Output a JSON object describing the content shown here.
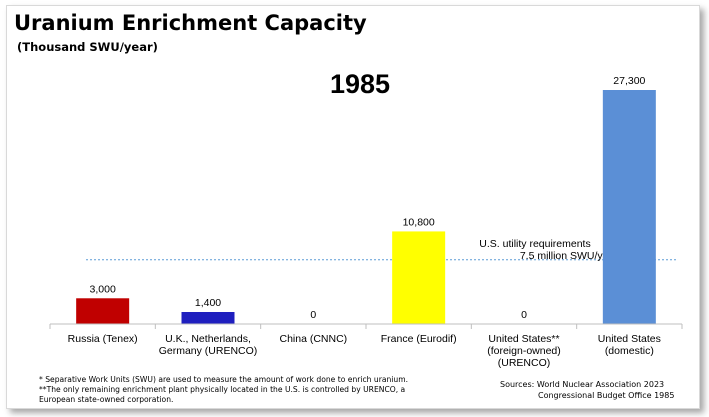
{
  "header": {
    "title": "Uranium Enrichment Capacity",
    "subtitle": "(Thousand SWU/year)",
    "year": "1985"
  },
  "chart_data": {
    "type": "bar",
    "title": "Uranium Enrichment Capacity",
    "subtitle": "(Thousand SWU/year)",
    "categories": [
      [
        "Russia (Tenex)"
      ],
      [
        "U.K., Netherlands,",
        "Germany (URENCO)"
      ],
      [
        "China (CNNC)"
      ],
      [
        "France (Eurodif)"
      ],
      [
        "United States**",
        "(foreign-owned)",
        "(URENCO)"
      ],
      [
        "United States",
        "(domestic)"
      ]
    ],
    "values": [
      3000,
      1400,
      0,
      10800,
      0,
      27300
    ],
    "value_labels": [
      "3,000",
      "1,400",
      "0",
      "10,800",
      "0",
      "27,300"
    ],
    "colors": [
      "#c00000",
      "#1f1fbf",
      "#7f7f7f",
      "#ffff00",
      "#7f7f7f",
      "#5b8fd6"
    ],
    "ylim": [
      0,
      27300
    ],
    "grid": false,
    "reference_line": {
      "value": 7500,
      "label_line1": "U.S. utility requirements",
      "label_line2": "7.5 million SWU/yr",
      "color": "#5b9bd5"
    }
  },
  "footnotes": [
    "* Separative Work Units (SWU) are used to measure the amount of work done to enrich uranium.",
    "**The only remaining enrichment plant physically located in the U.S. is controlled by URENCO, a",
    "European state-owned corporation."
  ],
  "sources": {
    "line1": "Sources:  World Nuclear Association 2023",
    "line2": "Congressional Budget Office 1985"
  }
}
